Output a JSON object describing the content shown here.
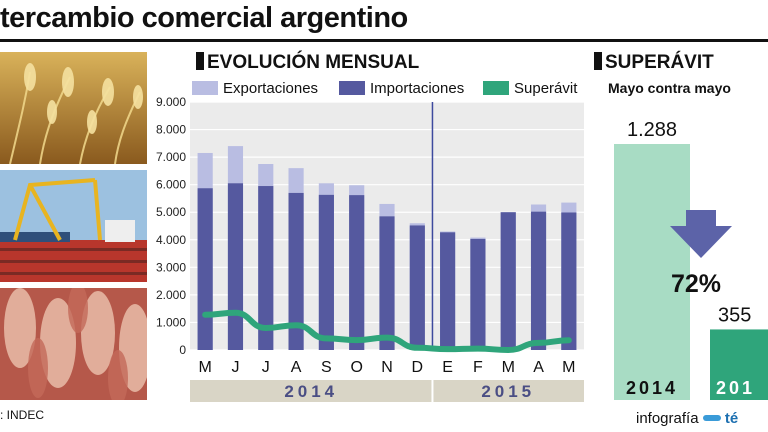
{
  "header": {
    "title": "tercambio comercial argentino"
  },
  "source": ": INDEC",
  "credit": {
    "text": "infografía",
    "brand": "té"
  },
  "monthly": {
    "heading": "EVOLUCIÓN MENSUAL",
    "legend": [
      "Exportaciones",
      "Importaciones",
      "Superávit"
    ]
  },
  "surplus": {
    "heading": "SUPERÁVIT",
    "subtitle": "Mayo contra mayo",
    "bars": [
      {
        "year_label": "2014",
        "value_label": "1.288",
        "value": 1288
      },
      {
        "year_label": "201",
        "value_label": "355",
        "value": 355
      }
    ],
    "change_label": "72%"
  },
  "colors": {
    "exports": "#b9bde2",
    "imports": "#55599f",
    "surplus": "#2fa57b",
    "plot_bg": "#ebebeb",
    "divider": "#3d4a9e",
    "year_band": "#d9d5c6",
    "year_text": "#4a4e84",
    "surplus_2014": "#a8dcc4",
    "surplus_2015": "#2fa57b",
    "arrow": "#5c63a8"
  },
  "chart_data": {
    "type": "bar",
    "title": "EVOLUCIÓN MENSUAL",
    "categories": [
      "M",
      "J",
      "J",
      "A",
      "S",
      "O",
      "N",
      "D",
      "E",
      "F",
      "M",
      "A",
      "M"
    ],
    "year_groups": [
      {
        "label": "2014",
        "months": 8
      },
      {
        "label": "2015",
        "months": 5
      }
    ],
    "series": [
      {
        "name": "Exportaciones",
        "kind": "bar",
        "values": [
          7150,
          7400,
          6750,
          6600,
          6050,
          5980,
          5300,
          4600,
          4300,
          4080,
          5000,
          5280,
          5350
        ]
      },
      {
        "name": "Importaciones",
        "kind": "bar",
        "values": [
          5870,
          6050,
          5950,
          5700,
          5630,
          5620,
          4850,
          4520,
          4270,
          4030,
          5000,
          5020,
          4990
        ]
      },
      {
        "name": "Superávit",
        "kind": "line",
        "values": [
          1280,
          1350,
          800,
          900,
          420,
          360,
          450,
          80,
          30,
          50,
          0,
          260,
          355
        ]
      }
    ],
    "yticks": [
      "0",
      "1.000",
      "2.000",
      "3.000",
      "4.000",
      "5.000",
      "6.000",
      "7.000",
      "8.000",
      "9.000"
    ],
    "ylim": [
      0,
      9000
    ],
    "grid": true
  }
}
